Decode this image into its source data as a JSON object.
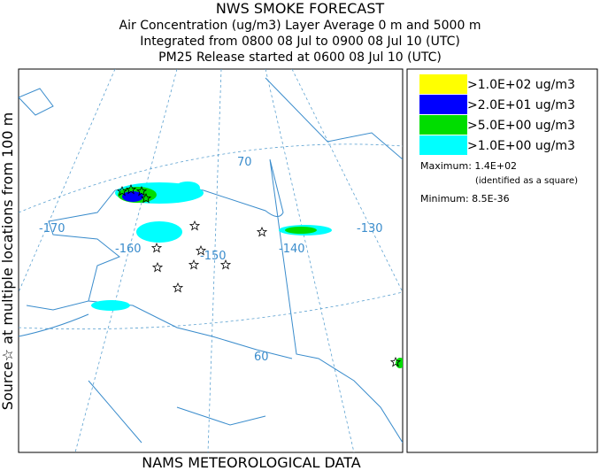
{
  "header": {
    "title": "NWS SMOKE FORECAST",
    "lines": [
      "Air Concentration (ug/m3) Layer Average    0 m and  5000 m",
      "Integrated from 0800 08 Jul to 0900 08 Jul 10 (UTC)",
      "PM25 Release started at 0600 08 Jul 10 (UTC)"
    ]
  },
  "side_label": "Source☆  at multiple locations   from  100 m",
  "footer": "NAMS METEOROLOGICAL DATA",
  "legend": {
    "items": [
      {
        "label": ">1.0E+02 ug/m3",
        "color": "#ffff00"
      },
      {
        "label": ">2.0E+01 ug/m3",
        "color": "#0000ff"
      },
      {
        "label": ">5.0E+00 ug/m3",
        "color": "#00dd00"
      },
      {
        "label": ">1.0E+00 ug/m3",
        "color": "#00ffff"
      }
    ],
    "maximum": "Maximum: 1.4E+02",
    "maximum_note": "(identified as a square)",
    "minimum": "Minimum: 8.5E-36"
  },
  "map": {
    "grid_labels": [
      "70",
      "-170",
      "-160",
      "-150",
      "-140",
      "-130",
      "60"
    ]
  }
}
